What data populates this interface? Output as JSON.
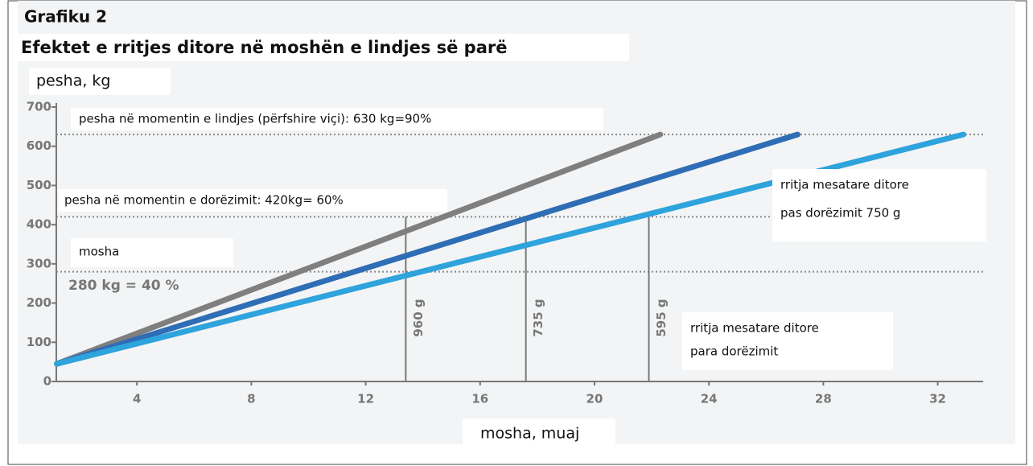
{
  "chart_data": {
    "type": "line",
    "title": "Grafiku 2",
    "subtitle": "Efektet e rritjes ditore në moshën e lindjes së parë",
    "y_label": "pesha, kg",
    "x_label": "mosha, muaj",
    "xlim": [
      0,
      32.8
    ],
    "xticks": [
      4,
      8,
      12,
      16,
      20,
      24,
      28,
      32
    ],
    "ylim": [
      0,
      700
    ],
    "yticks": [
      0,
      100,
      200,
      300,
      400,
      500,
      600,
      700
    ],
    "series": [
      {
        "color": "#7f7f7f",
        "x": [
          1.2,
          22.3
        ],
        "values": [
          45,
          630
        ]
      },
      {
        "color": "#2f6db5",
        "x": [
          1.2,
          27.1
        ],
        "values": [
          45,
          630
        ]
      },
      {
        "color": "#2ea3dc",
        "x": [
          1.2,
          32.9
        ],
        "values": [
          45,
          630
        ]
      }
    ],
    "reference_lines": [
      630,
      420,
      280
    ],
    "markers": [
      {
        "x": 13.4,
        "value": 420,
        "label": "960 g"
      },
      {
        "x": 17.6,
        "value": 420,
        "label": "735 g"
      },
      {
        "x": 21.9,
        "value": 420,
        "label": "595 g"
      }
    ],
    "annotations": {
      "birth_weight": "pesha në momentin e lindjes (përfshire viçi): 630 kg=90%",
      "delivery_weight": "pesha në momentin e dorëzimit: 420kg= 60%",
      "age": "mosha",
      "age_weight": "280 kg = 40 %",
      "gain_after": [
        "rritja mesatare ditore",
        "pas dorëzimit 750 g"
      ],
      "gain_before": [
        "rritja mesatare ditore",
        "para dorëzimit"
      ]
    }
  }
}
